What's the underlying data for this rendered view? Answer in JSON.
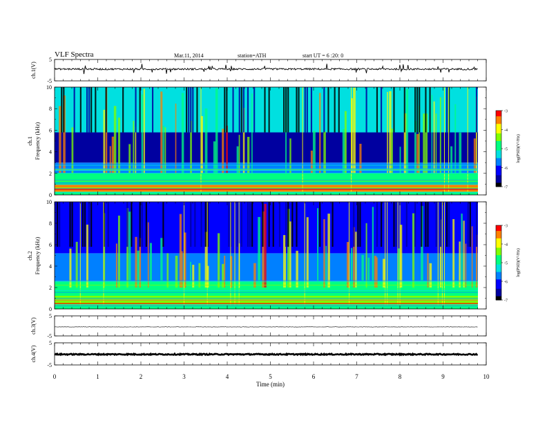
{
  "header": {
    "title": "VLF  Spectra",
    "date": "Mar.11, 2014",
    "station": "station=ATH",
    "start": "start  UT  =   6  :20: 0"
  },
  "chart_data": [
    {
      "type": "line",
      "panel": "ch1-waveform",
      "ylabel": "ch.1(V)",
      "ylim": [
        -5,
        5
      ],
      "yticks": [
        "5",
        "-5"
      ],
      "xlim": [
        0,
        10
      ],
      "description_values": {
        "baseline_V": 0.5,
        "noise_amplitude_V": 0.4,
        "spike_amplitude_V": 2.5
      }
    },
    {
      "type": "heatmap",
      "panel": "ch1-spectrogram",
      "ylabel": "ch.1\nFrequency  (kHz)",
      "ylabel_line1": "ch.1",
      "ylabel_line2": "Frequency  (kHz)",
      "ylim": [
        0,
        10
      ],
      "yticks": [
        "0",
        "2",
        "4",
        "6",
        "8",
        "10"
      ],
      "xlim": [
        0,
        9.8
      ],
      "colorbar": {
        "label": "log(PSD)(V²/Hz)",
        "range": [
          -7,
          -3
        ],
        "ticks": [
          "-3",
          "-4",
          "-5",
          "-6",
          "-7"
        ]
      },
      "bands": [
        {
          "fmin": 0.0,
          "fmax": 0.3,
          "level": -4.8
        },
        {
          "fmin": 0.3,
          "fmax": 1.0,
          "level": -3.6
        },
        {
          "fmin": 1.0,
          "fmax": 2.0,
          "level": -5.0
        },
        {
          "fmin": 2.0,
          "fmax": 3.0,
          "level": -5.6
        },
        {
          "fmin": 3.0,
          "fmax": 5.8,
          "level": -6.6
        },
        {
          "fmin": 5.8,
          "fmax": 10.0,
          "level": -5.4
        }
      ]
    },
    {
      "type": "heatmap",
      "panel": "ch2-spectrogram",
      "ylabel_line1": "ch.2",
      "ylabel_line2": "Frequency  (kHz)",
      "ylim": [
        0,
        10
      ],
      "yticks": [
        "0",
        "2",
        "4",
        "6",
        "8",
        "10"
      ],
      "xlim": [
        0,
        9.8
      ],
      "colorbar": {
        "label": "log(PSD)(V²/Hz)",
        "range": [
          -7,
          -3
        ],
        "ticks": [
          "-3",
          "-4",
          "-5",
          "-6",
          "-7"
        ]
      },
      "bands": [
        {
          "fmin": 0.0,
          "fmax": 0.3,
          "level": -5.0
        },
        {
          "fmin": 0.3,
          "fmax": 1.2,
          "level": -4.3
        },
        {
          "fmin": 1.2,
          "fmax": 2.6,
          "level": -4.9
        },
        {
          "fmin": 2.6,
          "fmax": 5.2,
          "level": -5.6
        },
        {
          "fmin": 5.2,
          "fmax": 10.0,
          "level": -6.3
        }
      ]
    },
    {
      "type": "line",
      "panel": "ch3-waveform",
      "ylabel": "ch.3(V)",
      "ylim": [
        -5,
        5
      ],
      "yticks": [
        "5",
        "-5"
      ],
      "xlim": [
        0,
        10
      ],
      "description_values": {
        "baseline_V": -0.5,
        "noise_amplitude_V": 0.1
      }
    },
    {
      "type": "line",
      "panel": "ch4-waveform",
      "ylabel": "ch.4(V)",
      "ylim": [
        -5,
        5
      ],
      "yticks": [
        "5",
        "-5"
      ],
      "xlim": [
        0,
        10
      ],
      "description_values": {
        "baseline_V": -0.2,
        "noise_amplitude_V": 0.25
      }
    }
  ],
  "x_axis": {
    "label": "Time  (min)",
    "ticks": [
      "0",
      "1",
      "2",
      "3",
      "4",
      "5",
      "6",
      "7",
      "8",
      "9",
      "10"
    ],
    "range": [
      0,
      10
    ]
  },
  "colormap": [
    "#000000",
    "#0000a0",
    "#0000ff",
    "#0080ff",
    "#00e0e0",
    "#00ff80",
    "#80ff00",
    "#ffff00",
    "#ff8000",
    "#ff0000",
    "#ffffff"
  ]
}
